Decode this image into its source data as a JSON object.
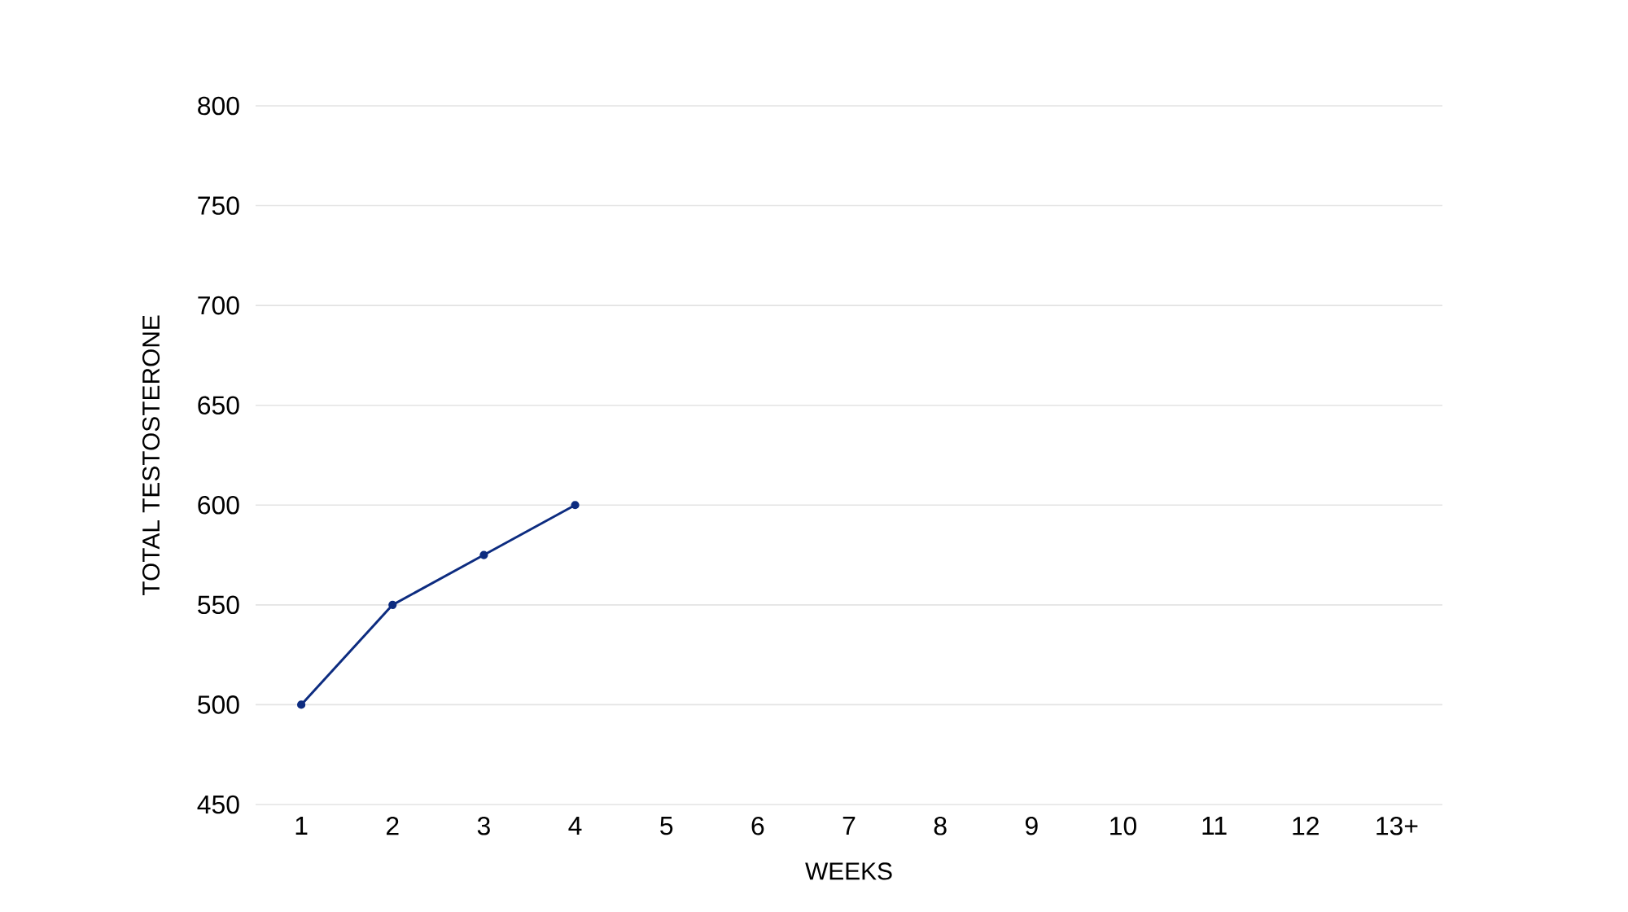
{
  "chart_data": {
    "type": "line",
    "xlabel": "WEEKS",
    "ylabel": "TOTAL TESTOSTERONE",
    "categories": [
      "1",
      "2",
      "3",
      "4",
      "5",
      "6",
      "7",
      "8",
      "9",
      "10",
      "11",
      "12",
      "13+"
    ],
    "series": [
      {
        "color": "#0d2c80",
        "values": [
          500,
          550,
          575,
          600,
          null,
          null,
          null,
          null,
          null,
          null,
          null,
          null,
          null
        ]
      }
    ],
    "ylim": [
      450,
      800
    ],
    "yticks": [
      450,
      500,
      550,
      600,
      650,
      700,
      750,
      800
    ],
    "grid": "y",
    "marker": "circle",
    "line_style": "solid"
  }
}
